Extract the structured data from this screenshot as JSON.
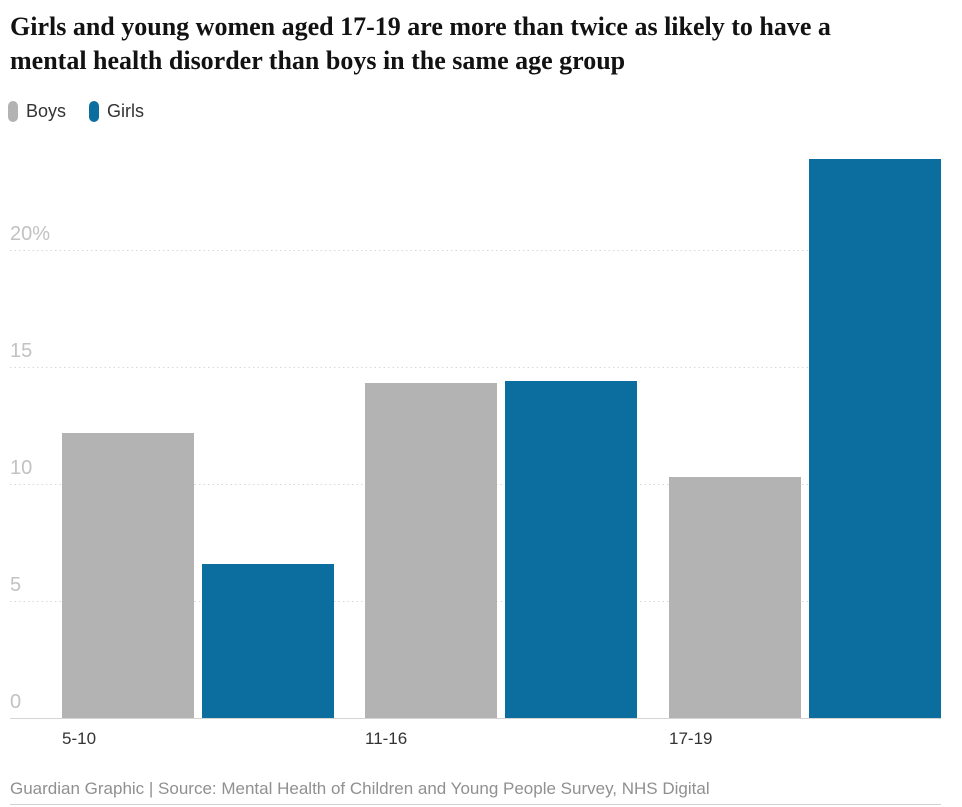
{
  "title": {
    "line1": "Girls and young women aged 17-19 are more than twice as likely to have a",
    "line2": "mental health disorder than boys in the same age group"
  },
  "legend": [
    {
      "label": "Boys",
      "color": "#b3b3b3"
    },
    {
      "label": "Girls",
      "color": "#0c6e9e"
    }
  ],
  "footer": {
    "text": "Guardian Graphic | Source: Mental Health of Children and Young People Survey, NHS Digital"
  },
  "colors": {
    "boys": "#b3b3b3",
    "girls": "#0c6e9e",
    "gridline": "#d8d8d8",
    "axis_text": "#c2c2c2",
    "category_text": "#333333",
    "title_text": "#121212",
    "footer_text": "#909090"
  },
  "chart_data": {
    "type": "bar",
    "title": "Girls and young women aged 17-19 are more than twice as likely to have a mental health disorder than boys in the same age group",
    "categories": [
      "5-10",
      "11-16",
      "17-19"
    ],
    "series": [
      {
        "name": "Boys",
        "color": "#b3b3b3",
        "values": [
          12.2,
          14.3,
          10.3
        ]
      },
      {
        "name": "Girls",
        "color": "#0c6e9e",
        "values": [
          6.6,
          14.4,
          23.9
        ]
      }
    ],
    "xlabel": "",
    "ylabel": "",
    "ylim": [
      0,
      24
    ],
    "y_ticks": [
      {
        "value": 0,
        "label": "0"
      },
      {
        "value": 5,
        "label": "5"
      },
      {
        "value": 10,
        "label": "10"
      },
      {
        "value": 15,
        "label": "15"
      },
      {
        "value": 20,
        "label": "20%"
      }
    ],
    "grid": "horizontal-dotted",
    "legend_position": "top-left",
    "source": "Guardian Graphic | Source: Mental Health of Children and Young People Survey, NHS Digital"
  }
}
